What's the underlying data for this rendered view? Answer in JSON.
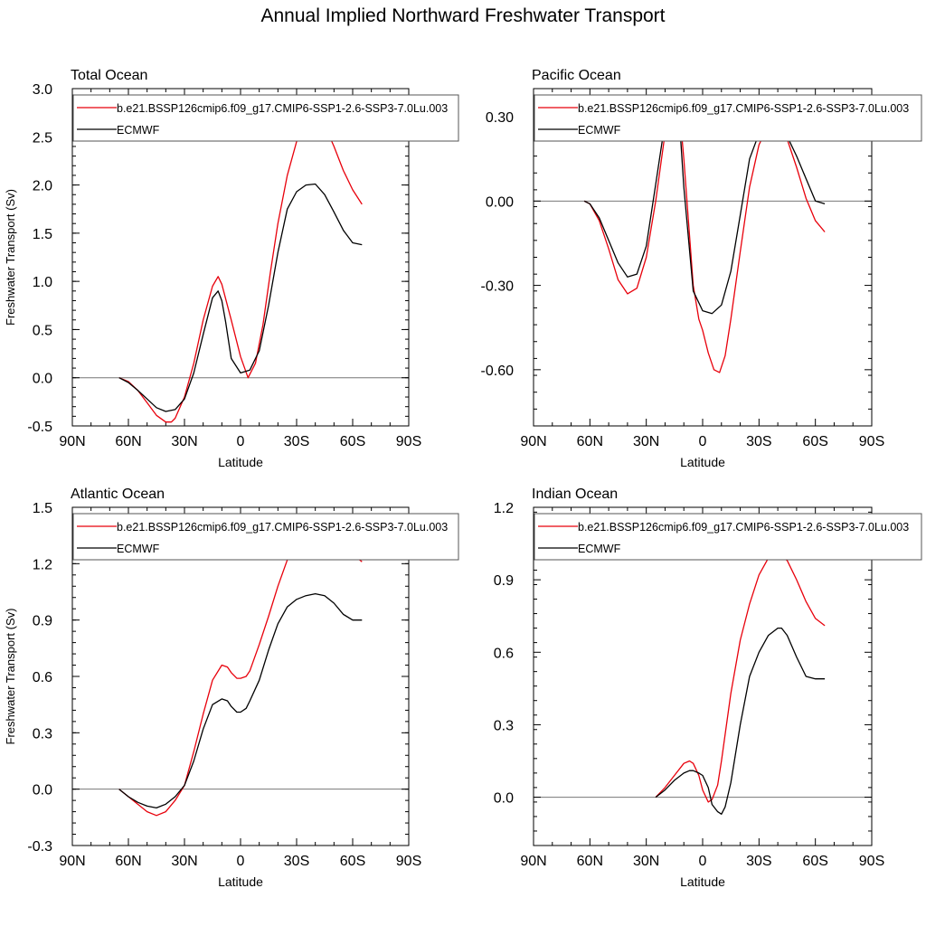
{
  "title": "Annual Implied Northward Freshwater Transport",
  "colors": {
    "model": "#e8000b",
    "obs": "#000000",
    "zero_line": "#777777"
  },
  "chart_data": [
    {
      "type": "line",
      "title": "Total Ocean",
      "xlabel": "Latitude",
      "ylabel": "Freshwater Transport (Sv)",
      "xlim": [
        -90,
        90
      ],
      "xticks": [
        -90,
        -60,
        -30,
        0,
        30,
        60,
        90
      ],
      "xtick_labels": [
        "90N",
        "60N",
        "30N",
        "0",
        "30S",
        "60S",
        "90S"
      ],
      "ylim": [
        -0.5,
        3.0
      ],
      "yticks": [
        -0.5,
        0.0,
        0.5,
        1.0,
        1.5,
        2.0,
        2.5,
        3.0
      ],
      "ytick_labels": [
        "-0.5",
        "0.0",
        "0.5",
        "1.0",
        "1.5",
        "2.0",
        "2.5",
        "3.0"
      ],
      "legend_position": "top",
      "series": [
        {
          "name": "b.e21.BSSP126cmip6.f09_g17.CMIP6-SSP1-2.6-SSP3-7.0Lu.003",
          "color": "#e8000b",
          "x": [
            -65,
            -60,
            -55,
            -50,
            -45,
            -40,
            -37,
            -35,
            -30,
            -25,
            -20,
            -15,
            -12,
            -10,
            -5,
            0,
            4,
            8,
            12,
            16,
            20,
            25,
            30,
            35,
            40,
            45,
            50,
            55,
            60,
            65
          ],
          "y": [
            0.0,
            -0.04,
            -0.13,
            -0.26,
            -0.39,
            -0.46,
            -0.46,
            -0.42,
            -0.2,
            0.15,
            0.6,
            0.95,
            1.05,
            0.97,
            0.6,
            0.22,
            0.0,
            0.15,
            0.55,
            1.1,
            1.6,
            2.1,
            2.45,
            2.65,
            2.72,
            2.62,
            2.4,
            2.15,
            1.95,
            1.8
          ]
        },
        {
          "name": "ECMWF",
          "color": "#000000",
          "x": [
            -65,
            -60,
            -55,
            -50,
            -45,
            -40,
            -35,
            -30,
            -25,
            -20,
            -15,
            -12,
            -10,
            -8,
            -5,
            0,
            5,
            10,
            15,
            20,
            25,
            30,
            35,
            40,
            45,
            50,
            55,
            60,
            65
          ],
          "y": [
            0.0,
            -0.05,
            -0.13,
            -0.22,
            -0.31,
            -0.35,
            -0.33,
            -0.22,
            0.05,
            0.45,
            0.83,
            0.9,
            0.8,
            0.58,
            0.2,
            0.05,
            0.08,
            0.28,
            0.75,
            1.3,
            1.75,
            1.93,
            2.0,
            2.01,
            1.9,
            1.72,
            1.53,
            1.4,
            1.38
          ]
        }
      ]
    },
    {
      "type": "line",
      "title": "Pacific Ocean",
      "xlabel": "Latitude",
      "ylabel": "",
      "xlim": [
        -90,
        90
      ],
      "xticks": [
        -90,
        -60,
        -30,
        0,
        30,
        60,
        90
      ],
      "xtick_labels": [
        "90N",
        "60N",
        "30N",
        "0",
        "30S",
        "60S",
        "90S"
      ],
      "ylim": [
        -0.8,
        0.4
      ],
      "yticks": [
        -0.6,
        -0.3,
        0.0,
        0.3
      ],
      "ytick_labels": [
        "-0.60",
        "-0.30",
        "0.00",
        "0.30"
      ],
      "legend_position": "top",
      "series": [
        {
          "name": "b.e21.BSSP126cmip6.f09_g17.CMIP6-SSP1-2.6-SSP3-7.0Lu.003",
          "color": "#e8000b",
          "x": [
            -63,
            -60,
            -55,
            -50,
            -45,
            -40,
            -35,
            -30,
            -25,
            -20,
            -17,
            -15,
            -12,
            -10,
            -5,
            -2,
            0,
            3,
            6,
            9,
            12,
            15,
            20,
            25,
            30,
            35,
            40,
            45,
            50,
            55,
            60,
            65
          ],
          "y": [
            0.0,
            -0.01,
            -0.07,
            -0.17,
            -0.28,
            -0.33,
            -0.31,
            -0.2,
            0.0,
            0.24,
            0.35,
            0.37,
            0.3,
            0.15,
            -0.3,
            -0.42,
            -0.46,
            -0.54,
            -0.6,
            -0.61,
            -0.55,
            -0.42,
            -0.18,
            0.05,
            0.2,
            0.27,
            0.28,
            0.22,
            0.12,
            0.01,
            -0.07,
            -0.11
          ]
        },
        {
          "name": "ECMWF",
          "color": "#000000",
          "x": [
            -63,
            -60,
            -55,
            -50,
            -45,
            -40,
            -35,
            -30,
            -25,
            -20,
            -17,
            -15,
            -12,
            -10,
            -5,
            0,
            5,
            10,
            15,
            20,
            25,
            30,
            35,
            40,
            45,
            50,
            55,
            60,
            65
          ],
          "y": [
            0.0,
            -0.01,
            -0.06,
            -0.14,
            -0.22,
            -0.27,
            -0.26,
            -0.16,
            0.06,
            0.28,
            0.35,
            0.36,
            0.25,
            0.05,
            -0.32,
            -0.39,
            -0.4,
            -0.37,
            -0.25,
            -0.05,
            0.15,
            0.24,
            0.27,
            0.27,
            0.23,
            0.16,
            0.08,
            0.0,
            -0.01
          ]
        }
      ]
    },
    {
      "type": "line",
      "title": "Atlantic Ocean",
      "xlabel": "Latitude",
      "ylabel": "Freshwater Transport (Sv)",
      "xlim": [
        -90,
        90
      ],
      "xticks": [
        -90,
        -60,
        -30,
        0,
        30,
        60,
        90
      ],
      "xtick_labels": [
        "90N",
        "60N",
        "30N",
        "0",
        "30S",
        "60S",
        "90S"
      ],
      "ylim": [
        -0.3,
        1.5
      ],
      "yticks": [
        -0.3,
        0.0,
        0.3,
        0.6,
        0.9,
        1.2,
        1.5
      ],
      "ytick_labels": [
        "-0.3",
        "0.0",
        "0.3",
        "0.6",
        "0.9",
        "1.2",
        "1.5"
      ],
      "legend_position": "top",
      "series": [
        {
          "name": "b.e21.BSSP126cmip6.f09_g17.CMIP6-SSP1-2.6-SSP3-7.0Lu.003",
          "color": "#e8000b",
          "x": [
            -65,
            -60,
            -55,
            -50,
            -45,
            -40,
            -35,
            -30,
            -25,
            -20,
            -15,
            -10,
            -7,
            -5,
            -2,
            0,
            3,
            5,
            10,
            15,
            20,
            25,
            30,
            35,
            40,
            45,
            50,
            55,
            60,
            65
          ],
          "y": [
            0.0,
            -0.04,
            -0.08,
            -0.12,
            -0.14,
            -0.12,
            -0.06,
            0.02,
            0.2,
            0.4,
            0.58,
            0.66,
            0.65,
            0.62,
            0.59,
            0.59,
            0.6,
            0.63,
            0.77,
            0.92,
            1.08,
            1.22,
            1.34,
            1.41,
            1.43,
            1.41,
            1.36,
            1.3,
            1.25,
            1.21
          ]
        },
        {
          "name": "ECMWF",
          "color": "#000000",
          "x": [
            -65,
            -60,
            -55,
            -50,
            -45,
            -40,
            -35,
            -30,
            -25,
            -20,
            -15,
            -10,
            -7,
            -5,
            -2,
            0,
            3,
            5,
            10,
            15,
            20,
            25,
            30,
            35,
            40,
            45,
            50,
            55,
            60,
            65
          ],
          "y": [
            0.0,
            -0.04,
            -0.07,
            -0.09,
            -0.1,
            -0.08,
            -0.04,
            0.02,
            0.15,
            0.32,
            0.45,
            0.48,
            0.47,
            0.44,
            0.41,
            0.41,
            0.43,
            0.47,
            0.58,
            0.74,
            0.88,
            0.97,
            1.01,
            1.03,
            1.04,
            1.03,
            0.99,
            0.93,
            0.9,
            0.9
          ]
        }
      ]
    },
    {
      "type": "line",
      "title": "Indian Ocean",
      "xlabel": "Latitude",
      "ylabel": "",
      "xlim": [
        -90,
        90
      ],
      "xticks": [
        -90,
        -60,
        -30,
        0,
        30,
        60,
        90
      ],
      "xtick_labels": [
        "90N",
        "60N",
        "30N",
        "0",
        "30S",
        "60S",
        "90S"
      ],
      "ylim": [
        -0.2,
        1.2
      ],
      "yticks": [
        0.0,
        0.3,
        0.6,
        0.9,
        1.2
      ],
      "ytick_labels": [
        "0.0",
        "0.3",
        "0.6",
        "0.9",
        "1.2"
      ],
      "legend_position": "top",
      "series": [
        {
          "name": "b.e21.BSSP126cmip6.f09_g17.CMIP6-SSP1-2.6-SSP3-7.0Lu.003",
          "color": "#e8000b",
          "x": [
            -25,
            -20,
            -15,
            -10,
            -7,
            -5,
            -2,
            0,
            3,
            5,
            8,
            10,
            15,
            20,
            25,
            30,
            35,
            40,
            45,
            50,
            55,
            60,
            65
          ],
          "y": [
            0.0,
            0.04,
            0.09,
            0.14,
            0.15,
            0.14,
            0.09,
            0.03,
            -0.02,
            -0.01,
            0.05,
            0.15,
            0.43,
            0.65,
            0.8,
            0.92,
            0.99,
            1.01,
            0.98,
            0.9,
            0.81,
            0.74,
            0.71
          ]
        },
        {
          "name": "ECMWF",
          "color": "#000000",
          "x": [
            -25,
            -20,
            -15,
            -10,
            -7,
            -5,
            -2,
            0,
            3,
            5,
            8,
            10,
            12,
            15,
            20,
            25,
            30,
            35,
            40,
            42,
            45,
            50,
            55,
            60,
            65
          ],
          "y": [
            0.0,
            0.03,
            0.07,
            0.1,
            0.11,
            0.11,
            0.1,
            0.09,
            0.04,
            -0.03,
            -0.06,
            -0.07,
            -0.04,
            0.06,
            0.3,
            0.5,
            0.6,
            0.67,
            0.7,
            0.7,
            0.67,
            0.58,
            0.5,
            0.49,
            0.49
          ]
        }
      ]
    }
  ]
}
